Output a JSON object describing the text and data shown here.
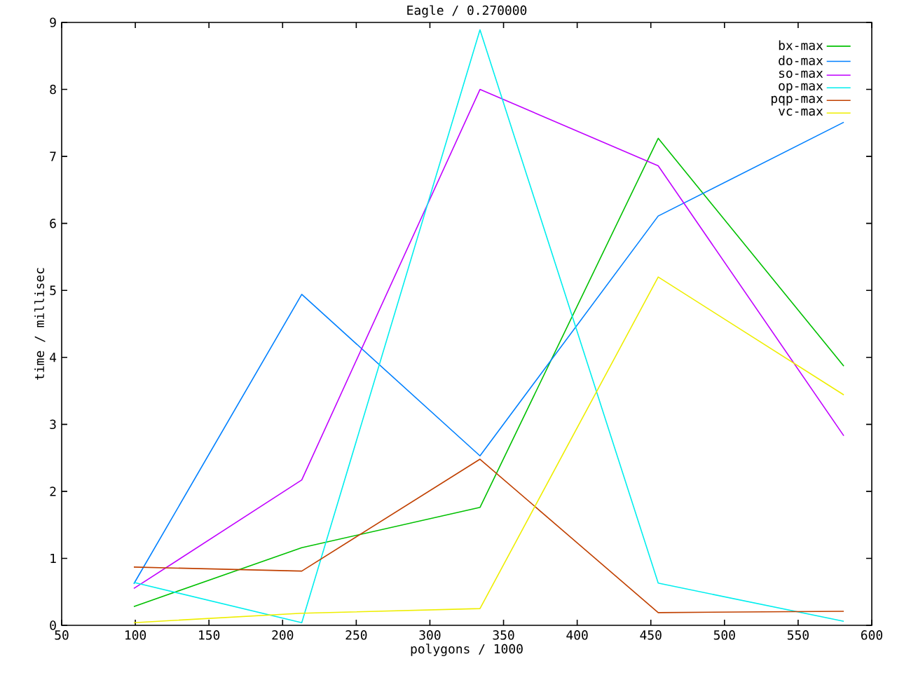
{
  "chart_data": {
    "type": "line",
    "title": "Eagle / 0.270000",
    "xlabel": "polygons / 1000",
    "ylabel": "time / millisec",
    "x": [
      99,
      213,
      334,
      455,
      581
    ],
    "series": [
      {
        "name": "bx-max",
        "color": "#00c000",
        "values": [
          0.28,
          1.16,
          1.76,
          7.27,
          3.87
        ]
      },
      {
        "name": "do-max",
        "color": "#0080ff",
        "values": [
          0.62,
          4.94,
          2.53,
          6.11,
          7.51
        ]
      },
      {
        "name": "so-max",
        "color": "#c000ff",
        "values": [
          0.55,
          2.17,
          8.0,
          6.86,
          2.83
        ]
      },
      {
        "name": "op-max",
        "color": "#00eeee",
        "values": [
          0.64,
          0.04,
          8.89,
          0.63,
          0.06
        ]
      },
      {
        "name": "pqp-max",
        "color": "#c04000",
        "values": [
          0.87,
          0.81,
          2.48,
          0.19,
          0.21
        ]
      },
      {
        "name": "vc-max",
        "color": "#eeee00",
        "values": [
          0.04,
          0.18,
          0.25,
          5.2,
          3.44
        ]
      }
    ],
    "xlim": [
      50,
      600
    ],
    "ylim": [
      0,
      9
    ],
    "xticks": [
      50,
      100,
      150,
      200,
      250,
      300,
      350,
      400,
      450,
      500,
      550,
      600
    ],
    "yticks": [
      0,
      1,
      2,
      3,
      4,
      5,
      6,
      7,
      8,
      9
    ],
    "grid": false,
    "legend": "top right",
    "marker": "none",
    "line_style": "solid"
  }
}
